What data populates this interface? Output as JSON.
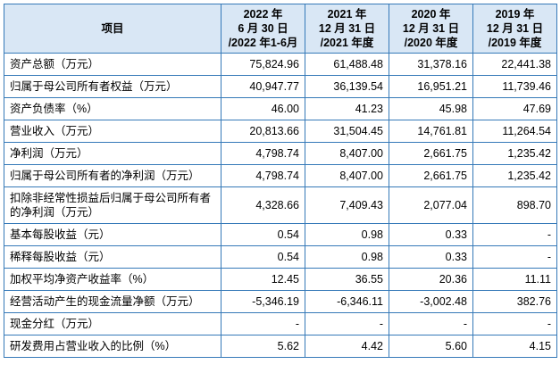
{
  "colors": {
    "table_border": "#3579b8",
    "header_bg": "#d9e7f5",
    "text": "#000000"
  },
  "table": {
    "header": {
      "item": "项目",
      "periods": [
        "2022 年\n6 月 30 日\n/2022 年1-6月",
        "2021 年\n12 月 31 日\n/2021 年度",
        "2020 年\n12 月 31 日\n/2020 年度",
        "2019 年\n12 月 31 日\n/2019 年度"
      ]
    },
    "rows": [
      {
        "label": "资产总额（万元）",
        "values": [
          "75,824.96",
          "61,488.48",
          "31,378.16",
          "22,441.38"
        ]
      },
      {
        "label": "归属于母公司所有者权益（万元）",
        "values": [
          "40,947.77",
          "36,139.54",
          "16,951.21",
          "11,739.46"
        ]
      },
      {
        "label": "资产负债率（%）",
        "values": [
          "46.00",
          "41.23",
          "45.98",
          "47.69"
        ]
      },
      {
        "label": "营业收入（万元）",
        "values": [
          "20,813.66",
          "31,504.45",
          "14,761.81",
          "11,264.54"
        ]
      },
      {
        "label": "净利润（万元）",
        "values": [
          "4,798.74",
          "8,407.00",
          "2,661.75",
          "1,235.42"
        ]
      },
      {
        "label": "归属于母公司所有者的净利润（万元）",
        "values": [
          "4,798.74",
          "8,407.00",
          "2,661.75",
          "1,235.42"
        ]
      },
      {
        "label": "扣除非经常性损益后归属于母公司所有者的净利润（万元）",
        "values": [
          "4,328.66",
          "7,409.43",
          "2,077.04",
          "898.70"
        ]
      },
      {
        "label": "基本每股收益（元）",
        "values": [
          "0.54",
          "0.98",
          "0.33",
          "-"
        ]
      },
      {
        "label": "稀释每股收益（元）",
        "values": [
          "0.54",
          "0.98",
          "0.33",
          "-"
        ]
      },
      {
        "label": "加权平均净资产收益率（%）",
        "values": [
          "12.45",
          "36.55",
          "20.36",
          "11.11"
        ]
      },
      {
        "label": "经营活动产生的现金流量净额（万元）",
        "values": [
          "-5,346.19",
          "-6,346.11",
          "-3,002.48",
          "382.76"
        ]
      },
      {
        "label": "现金分红（万元）",
        "values": [
          "-",
          "-",
          "-",
          "-"
        ]
      },
      {
        "label": "研发费用占营业收入的比例（%）",
        "values": [
          "5.62",
          "4.42",
          "5.60",
          "4.15"
        ]
      }
    ]
  }
}
